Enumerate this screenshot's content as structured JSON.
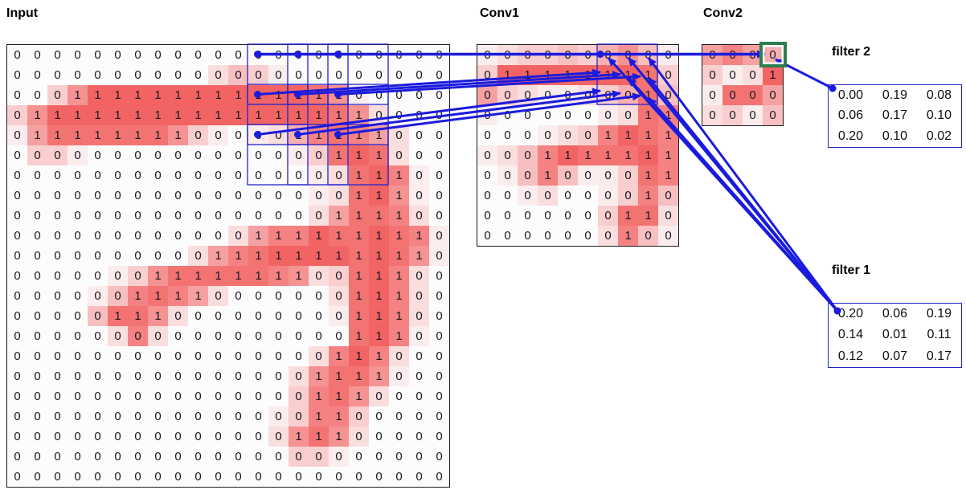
{
  "labels": {
    "input": "Input",
    "conv1": "Conv1",
    "conv2": "Conv2",
    "filter1": "filter 1",
    "filter2": "filter 2"
  },
  "colors": {
    "line_blue": "#1b1bdd",
    "window_blue": "#2323cc",
    "green_highlight": "#2e7d50",
    "heat_red_rgb": [
      242,
      100,
      100
    ],
    "cell_base_rgb": [
      252,
      252,
      253
    ],
    "digit_text": "#17171f",
    "grid_border": "#1c1c1c"
  },
  "grids": {
    "input": {
      "rows": 22,
      "cols": 22,
      "values": [
        "0000000000000000000000",
        "0000000000000000000000",
        "0001111111111111100000",
        "0111111111111111110000",
        "0111111110000011111000",
        "0000000000000000111000",
        "0000000000000000011100",
        "0000000000000000011100",
        "0000000000000000111100",
        "0000000000001111111110",
        "0000000000111111111110",
        "0000000111111110011100",
        "0000001111000000011100",
        "0000011100000000011100",
        "0000000000000000011100",
        "0000000000000000111000",
        "0000000000000001111000",
        "0000000000000001110000",
        "0000000000000001100000",
        "0000000000000011100000",
        "0000000000000000000000",
        "0000000000000000000000"
      ],
      "intensity": [
        [
          0,
          0,
          0,
          0,
          0,
          0,
          0,
          0,
          0,
          0,
          0,
          0,
          0,
          0,
          0,
          0,
          0,
          0,
          0,
          0,
          0,
          0
        ],
        [
          0,
          0,
          0,
          0,
          0,
          0,
          0,
          0,
          0,
          0,
          2,
          4,
          3,
          1,
          0,
          0,
          0,
          0,
          0,
          0,
          0,
          0
        ],
        [
          0,
          0,
          3,
          7,
          10,
          10,
          10,
          10,
          10,
          10,
          10,
          10,
          10,
          10,
          10,
          9,
          7,
          1,
          0,
          0,
          0,
          0
        ],
        [
          3,
          7,
          10,
          10,
          10,
          10,
          10,
          10,
          10,
          10,
          10,
          10,
          10,
          10,
          10,
          10,
          9,
          7,
          2,
          0,
          0,
          0
        ],
        [
          1,
          6,
          9,
          9,
          9,
          9,
          9,
          9,
          7,
          3,
          1,
          0,
          1,
          2,
          5,
          8,
          9,
          8,
          6,
          2,
          0,
          0
        ],
        [
          0,
          3,
          3,
          1,
          0,
          0,
          0,
          0,
          0,
          0,
          0,
          0,
          0,
          0,
          1,
          3,
          9,
          10,
          9,
          2,
          0,
          0
        ],
        [
          0,
          0,
          0,
          0,
          0,
          0,
          0,
          0,
          0,
          0,
          0,
          0,
          0,
          0,
          0,
          1,
          2,
          9,
          10,
          8,
          1,
          0
        ],
        [
          0,
          0,
          0,
          0,
          0,
          0,
          0,
          0,
          0,
          0,
          0,
          0,
          0,
          0,
          0,
          1,
          2,
          9,
          10,
          7,
          1,
          0
        ],
        [
          0,
          0,
          0,
          0,
          0,
          0,
          0,
          0,
          0,
          0,
          0,
          0,
          0,
          0,
          0,
          2,
          6,
          9,
          9,
          8,
          2,
          0
        ],
        [
          0,
          0,
          0,
          0,
          0,
          0,
          0,
          0,
          0,
          0,
          0,
          2,
          6,
          8,
          8,
          10,
          9,
          9,
          10,
          9,
          8,
          1
        ],
        [
          0,
          0,
          0,
          0,
          0,
          0,
          0,
          0,
          0,
          2,
          6,
          8,
          9,
          10,
          10,
          10,
          10,
          9,
          10,
          9,
          7,
          1
        ],
        [
          0,
          0,
          0,
          0,
          0,
          1,
          3,
          7,
          9,
          9,
          9,
          9,
          9,
          8,
          7,
          2,
          3,
          9,
          10,
          8,
          2,
          0
        ],
        [
          0,
          0,
          0,
          0,
          1,
          4,
          8,
          9,
          8,
          6,
          2,
          0,
          0,
          0,
          0,
          0,
          2,
          9,
          10,
          8,
          2,
          0
        ],
        [
          0,
          0,
          0,
          0,
          4,
          9,
          9,
          7,
          2,
          0,
          0,
          0,
          0,
          0,
          0,
          0,
          1,
          9,
          10,
          8,
          2,
          0
        ],
        [
          0,
          0,
          0,
          0,
          0,
          2,
          8,
          2,
          0,
          0,
          0,
          0,
          0,
          0,
          0,
          0,
          0,
          9,
          10,
          8,
          1,
          0
        ],
        [
          0,
          0,
          0,
          0,
          0,
          0,
          0,
          0,
          0,
          0,
          0,
          0,
          0,
          0,
          0,
          2,
          8,
          10,
          8,
          2,
          0,
          0
        ],
        [
          0,
          0,
          0,
          0,
          0,
          0,
          0,
          0,
          0,
          0,
          0,
          0,
          0,
          0,
          2,
          7,
          9,
          9,
          7,
          1,
          0,
          0
        ],
        [
          0,
          0,
          0,
          0,
          0,
          0,
          0,
          0,
          0,
          0,
          0,
          0,
          0,
          0,
          3,
          8,
          9,
          7,
          2,
          0,
          0,
          0
        ],
        [
          0,
          0,
          0,
          0,
          0,
          0,
          0,
          0,
          0,
          0,
          0,
          0,
          0,
          1,
          3,
          8,
          8,
          3,
          0,
          0,
          0,
          0
        ],
        [
          0,
          0,
          0,
          0,
          0,
          0,
          0,
          0,
          0,
          0,
          0,
          0,
          0,
          2,
          7,
          9,
          7,
          2,
          0,
          0,
          0,
          0
        ],
        [
          0,
          0,
          0,
          0,
          0,
          0,
          0,
          0,
          0,
          0,
          0,
          0,
          0,
          0,
          3,
          3,
          1,
          0,
          0,
          0,
          0,
          0
        ],
        [
          0,
          0,
          0,
          0,
          0,
          0,
          0,
          0,
          0,
          0,
          0,
          0,
          0,
          0,
          0,
          0,
          0,
          0,
          0,
          0,
          0,
          0
        ]
      ]
    },
    "conv1": {
      "rows": 10,
      "cols": 10,
      "values": [
        "0000000000",
        "0111111110",
        "0000000010",
        "0000000011",
        "0000001111",
        "0001111111",
        "0001000011",
        "0000000010",
        "0000000110",
        "0000000100"
      ],
      "intensity": [
        [
          1,
          2,
          3,
          3,
          4,
          3,
          5,
          7,
          4,
          1
        ],
        [
          3,
          10,
          10,
          10,
          10,
          10,
          10,
          10,
          9,
          3
        ],
        [
          6,
          3,
          2,
          1,
          1,
          2,
          3,
          5,
          9,
          4
        ],
        [
          1,
          0,
          0,
          0,
          0,
          0,
          1,
          2,
          9,
          8
        ],
        [
          0,
          0,
          0,
          1,
          2,
          3,
          8,
          10,
          9,
          8
        ],
        [
          1,
          2,
          4,
          8,
          10,
          9,
          9,
          9,
          10,
          8
        ],
        [
          0,
          1,
          4,
          8,
          4,
          1,
          1,
          3,
          9,
          8
        ],
        [
          0,
          0,
          1,
          2,
          0,
          0,
          1,
          3,
          8,
          4
        ],
        [
          0,
          0,
          0,
          0,
          0,
          0,
          3,
          9,
          9,
          2
        ],
        [
          0,
          0,
          0,
          0,
          0,
          0,
          2,
          8,
          4,
          1
        ]
      ]
    },
    "conv2": {
      "rows": 4,
      "cols": 4,
      "values": [
        "0000",
        "0001",
        "0000",
        "0000"
      ],
      "intensity": [
        [
          6,
          8,
          6,
          5
        ],
        [
          3,
          1,
          2,
          10
        ],
        [
          1,
          9,
          9,
          6
        ],
        [
          2,
          3,
          1,
          4
        ]
      ]
    }
  },
  "filters": {
    "filter2": {
      "label": "filter 2",
      "rows": [
        [
          "0.00",
          "0.19",
          "0.08"
        ],
        [
          "0.06",
          "0.17",
          "0.10"
        ],
        [
          "0.20",
          "0.10",
          "0.02"
        ]
      ]
    },
    "filter1": {
      "label": "filter 1",
      "rows": [
        [
          "0.20",
          "0.06",
          "0.19"
        ],
        [
          "0.14",
          "0.01",
          "0.11"
        ],
        [
          "0.12",
          "0.07",
          "0.17"
        ]
      ]
    }
  }
}
